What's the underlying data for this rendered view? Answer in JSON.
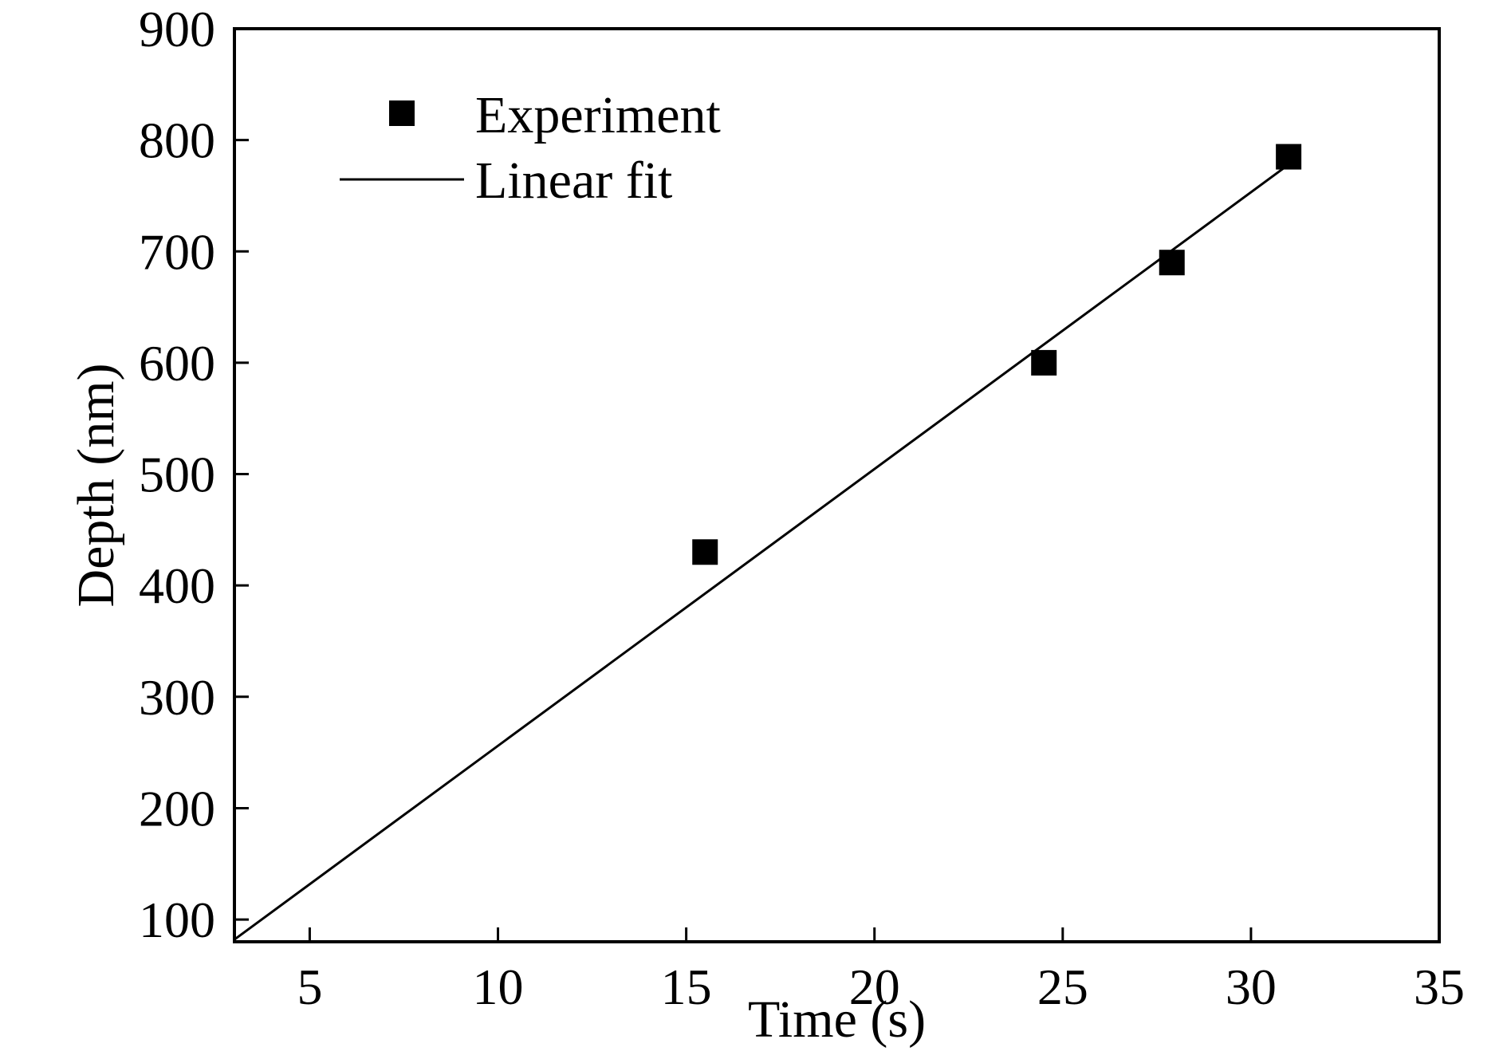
{
  "chart_data": {
    "type": "scatter",
    "title": "",
    "xlabel": "Time (s)",
    "ylabel": "Depth (nm)",
    "xlim": [
      3,
      35
    ],
    "ylim": [
      80,
      900
    ],
    "xticks": [
      5,
      10,
      15,
      20,
      25,
      30,
      35
    ],
    "yticks": [
      100,
      200,
      300,
      400,
      500,
      600,
      700,
      800,
      900
    ],
    "grid": false,
    "legend_position": "top-left",
    "series": [
      {
        "name": "Experiment",
        "kind": "scatter",
        "marker": "square",
        "x": [
          15.5,
          24.5,
          27.9,
          31.0
        ],
        "y": [
          430,
          600,
          690,
          785
        ]
      },
      {
        "name": "Linear fit",
        "kind": "line",
        "x": [
          3.0,
          31.0
        ],
        "y": [
          82,
          778
        ]
      }
    ],
    "colors": {
      "marks": "#000000",
      "background": "#ffffff"
    }
  }
}
